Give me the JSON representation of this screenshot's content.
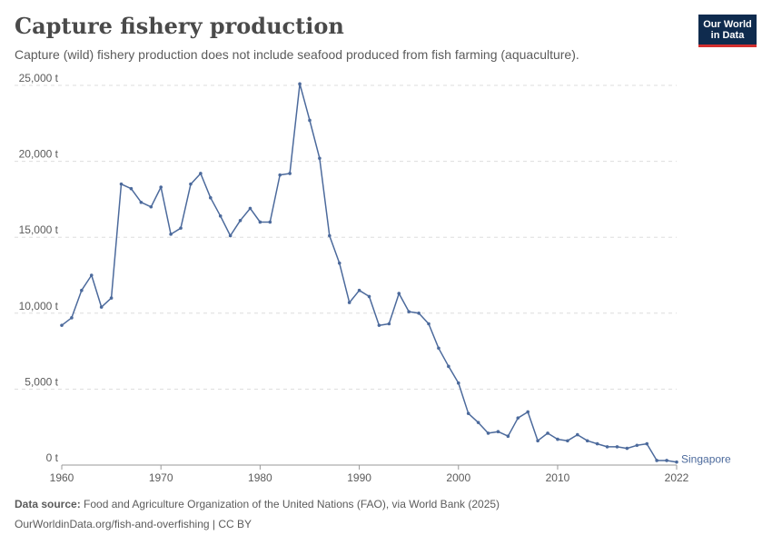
{
  "header": {
    "title": "Capture fishery production",
    "subtitle": "Capture (wild) fishery production does not include seafood produced from fish farming (aquaculture)."
  },
  "logo": {
    "line1": "Our World",
    "line2": "in Data"
  },
  "footer": {
    "source_label": "Data source:",
    "source_text": "Food and Agriculture Organization of the United Nations (FAO), via World Bank (2025)",
    "url_text": "OurWorldinData.org/fish-and-overfishing | CC BY"
  },
  "colors": {
    "series": "#4c6a9c",
    "grid": "#dddddd",
    "axis_text": "#5b5b5b"
  },
  "chart_data": {
    "type": "line",
    "title": "Capture fishery production",
    "xlim": [
      1960,
      2022
    ],
    "ylim": [
      0,
      25000
    ],
    "y_ticks": [
      {
        "value": 0,
        "label": "0 t"
      },
      {
        "value": 5000,
        "label": "5,000 t"
      },
      {
        "value": 10000,
        "label": "10,000 t"
      },
      {
        "value": 15000,
        "label": "15,000 t"
      },
      {
        "value": 20000,
        "label": "20,000 t"
      },
      {
        "value": 25000,
        "label": "25,000 t"
      }
    ],
    "x_ticks": [
      {
        "value": 1960,
        "label": "1960"
      },
      {
        "value": 1970,
        "label": "1970"
      },
      {
        "value": 1980,
        "label": "1980"
      },
      {
        "value": 1990,
        "label": "1990"
      },
      {
        "value": 2000,
        "label": "2000"
      },
      {
        "value": 2010,
        "label": "2010"
      },
      {
        "value": 2022,
        "label": "2022"
      }
    ],
    "grid": "horizontal-dashed",
    "series": [
      {
        "name": "Singapore",
        "x": [
          1960,
          1961,
          1962,
          1963,
          1964,
          1965,
          1966,
          1967,
          1968,
          1969,
          1970,
          1971,
          1972,
          1973,
          1974,
          1975,
          1976,
          1977,
          1978,
          1979,
          1980,
          1981,
          1982,
          1983,
          1984,
          1985,
          1986,
          1987,
          1988,
          1989,
          1990,
          1991,
          1992,
          1993,
          1994,
          1995,
          1996,
          1997,
          1998,
          1999,
          2000,
          2001,
          2002,
          2003,
          2004,
          2005,
          2006,
          2007,
          2008,
          2009,
          2010,
          2011,
          2012,
          2013,
          2014,
          2015,
          2016,
          2017,
          2018,
          2019,
          2020,
          2021,
          2022
        ],
        "values": [
          9200,
          9700,
          11500,
          12500,
          10400,
          11000,
          18500,
          18200,
          17300,
          17000,
          18300,
          15200,
          15600,
          18500,
          19200,
          17600,
          16400,
          15100,
          16100,
          16900,
          16000,
          16000,
          19100,
          19200,
          25100,
          22700,
          20200,
          15100,
          13300,
          10700,
          11500,
          11100,
          9200,
          9300,
          11300,
          10100,
          10000,
          9300,
          7700,
          6500,
          5400,
          3400,
          2800,
          2100,
          2200,
          1900,
          3100,
          3500,
          1600,
          2100,
          1700,
          1600,
          2000,
          1600,
          1400,
          1200,
          1200,
          1100,
          1300,
          1400,
          300,
          300,
          200
        ]
      }
    ]
  }
}
